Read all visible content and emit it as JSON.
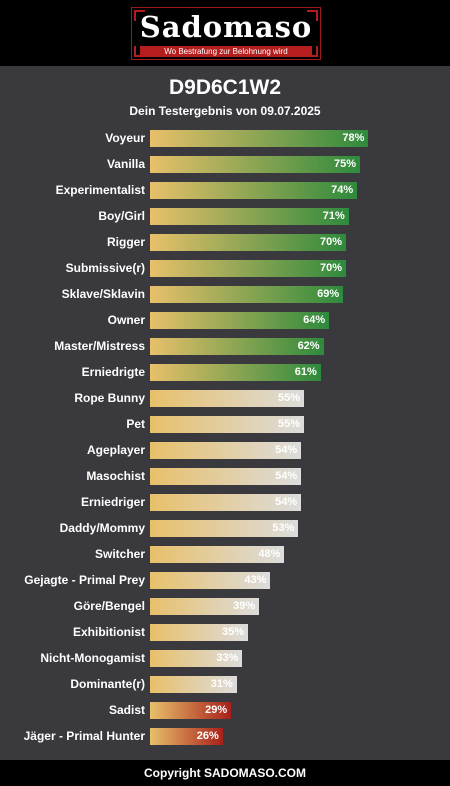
{
  "header": {
    "logo_text": "Sadomaso",
    "tagline": "Wo Bestrafung zur Belohnung wird"
  },
  "title": "D9D6C1W2",
  "subtitle": "Dein Testergebnis von 09.07.2025",
  "footer": "Copyright SADOMASO.COM",
  "colors": {
    "bar_start": "#e8c06a",
    "high_end": "#2e8a3c",
    "mid_end": "#dcdcdc",
    "low_end": "#a8201a",
    "background": "#3a3a3e"
  },
  "chart_data": {
    "type": "bar",
    "orientation": "horizontal",
    "categories": [
      "Voyeur",
      "Vanilla",
      "Experimentalist",
      "Boy/Girl",
      "Rigger",
      "Submissive(r)",
      "Sklave/Sklavin",
      "Owner",
      "Master/Mistress",
      "Erniedrigte",
      "Rope Bunny",
      "Pet",
      "Ageplayer",
      "Masochist",
      "Erniedriger",
      "Daddy/Mommy",
      "Switcher",
      "Gejagte - Primal Prey",
      "Göre/Bengel",
      "Exhibitionist",
      "Nicht-Monogamist",
      "Dominante(r)",
      "Sadist",
      "Jäger - Primal Hunter"
    ],
    "values": [
      78,
      75,
      74,
      71,
      70,
      70,
      69,
      64,
      62,
      61,
      55,
      55,
      54,
      54,
      54,
      53,
      48,
      43,
      39,
      35,
      33,
      31,
      29,
      26
    ],
    "value_labels": [
      "78%",
      "75%",
      "74%",
      "71%",
      "70%",
      "70%",
      "69%",
      "64%",
      "62%",
      "61%",
      "55%",
      "55%",
      "54%",
      "54%",
      "54%",
      "53%",
      "48%",
      "43%",
      "39%",
      "35%",
      "33%",
      "31%",
      "29%",
      "26%"
    ],
    "xlim": [
      0,
      100
    ]
  }
}
